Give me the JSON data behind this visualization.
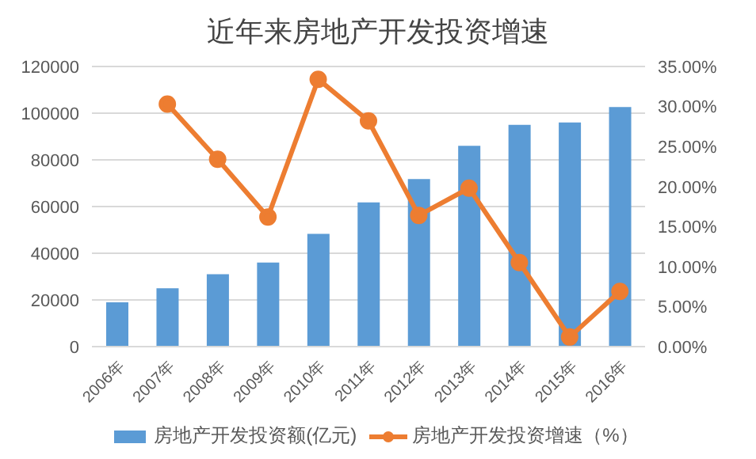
{
  "chart_data": {
    "type": "bar",
    "title": "近年来房地产开发投资增速",
    "categories": [
      "2006年",
      "2007年",
      "2008年",
      "2009年",
      "2010年",
      "2011年",
      "2012年",
      "2013年",
      "2014年",
      "2015年",
      "2016年"
    ],
    "series": [
      {
        "name": "房地产开发投资额(亿元)",
        "color": "#5b9bd5",
        "values": [
          19000,
          25000,
          31000,
          36000,
          48300,
          61800,
          71800,
          86000,
          95000,
          96000,
          102600
        ]
      },
      {
        "name": "房地产开发投资增速（%）",
        "type": "line",
        "axis": "y2",
        "color": "#ed7d31",
        "marker": "circle",
        "values": [
          null,
          30.3,
          23.4,
          16.2,
          33.4,
          28.2,
          16.4,
          19.8,
          10.5,
          1.2,
          6.9
        ]
      }
    ],
    "ylim": [
      0,
      120000
    ],
    "yticks": [
      0,
      20000,
      40000,
      60000,
      80000,
      100000,
      120000
    ],
    "y2lim": [
      0,
      35
    ],
    "y2ticks": [
      {
        "value": 0,
        "label": "0.00%"
      },
      {
        "value": 5,
        "label": "5.00%"
      },
      {
        "value": 10,
        "label": "10.00%"
      },
      {
        "value": 15,
        "label": "15.00%"
      },
      {
        "value": 20,
        "label": "20.00%"
      },
      {
        "value": 25,
        "label": "25.00%"
      },
      {
        "value": 30,
        "label": "30.00%"
      },
      {
        "value": 35,
        "label": "35.00%"
      }
    ],
    "grid": "y",
    "legend": "bottom"
  }
}
